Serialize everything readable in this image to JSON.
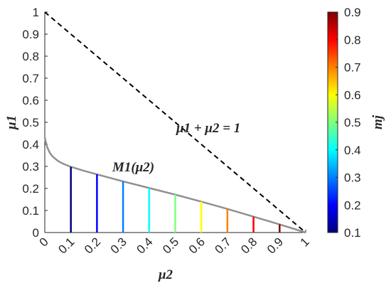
{
  "chart_data": {
    "type": "line",
    "xlabel": "μ2",
    "ylabel": "μ1",
    "xlim": [
      0,
      1
    ],
    "ylim": [
      0,
      1
    ],
    "x_ticks": [
      "0",
      "0.1",
      "0.2",
      "0.3",
      "0.4",
      "0.5",
      "0.6",
      "0.7",
      "0.8",
      "0.9",
      "1"
    ],
    "y_ticks": [
      "0",
      "0.1",
      "0.2",
      "0.3",
      "0.4",
      "0.5",
      "0.6",
      "0.7",
      "0.8",
      "0.9",
      "1"
    ],
    "grid": false,
    "annotations": {
      "line_label": "μ1 + μ2 = 1",
      "curve_label": "M1(μ2)"
    },
    "series": [
      {
        "style": "dashed",
        "color": "#000000",
        "x": [
          0,
          1
        ],
        "y": [
          1,
          0
        ]
      },
      {
        "style": "solid",
        "color": "#909090",
        "x": [
          0,
          0.005,
          0.01,
          0.02,
          0.03,
          0.05,
          0.07,
          0.1,
          0.15,
          0.2,
          0.3,
          0.4,
          0.5,
          0.6,
          0.7,
          0.8,
          0.9,
          1.0
        ],
        "y": [
          0.43,
          0.405,
          0.385,
          0.36,
          0.345,
          0.325,
          0.312,
          0.298,
          0.28,
          0.264,
          0.232,
          0.202,
          0.172,
          0.14,
          0.107,
          0.072,
          0.037,
          0
        ]
      }
    ],
    "stems": [
      {
        "x": 0.1,
        "y": 0.298,
        "m": 0.1
      },
      {
        "x": 0.2,
        "y": 0.264,
        "m": 0.2
      },
      {
        "x": 0.3,
        "y": 0.232,
        "m": 0.3
      },
      {
        "x": 0.4,
        "y": 0.202,
        "m": 0.4
      },
      {
        "x": 0.5,
        "y": 0.172,
        "m": 0.5
      },
      {
        "x": 0.6,
        "y": 0.14,
        "m": 0.6
      },
      {
        "x": 0.7,
        "y": 0.107,
        "m": 0.7
      },
      {
        "x": 0.8,
        "y": 0.072,
        "m": 0.8
      },
      {
        "x": 0.9,
        "y": 0.037,
        "m": 0.9
      }
    ],
    "colorbar": {
      "label": "mj",
      "min": 0.1,
      "max": 0.9,
      "ticks": [
        "0.1",
        "0.2",
        "0.3",
        "0.4",
        "0.5",
        "0.6",
        "0.7",
        "0.8",
        "0.9"
      ],
      "colormap": "jet"
    }
  }
}
